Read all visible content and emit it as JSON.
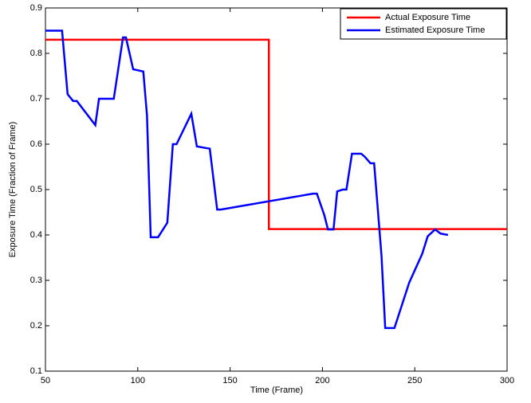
{
  "chart_data": {
    "type": "line",
    "xlabel": "Time (Frame)",
    "ylabel": "Exposure Time (Fraction of Frame)",
    "xlim": [
      50,
      300
    ],
    "xticks": [
      50,
      100,
      150,
      200,
      250,
      300
    ],
    "ylim": [
      0.1,
      0.9
    ],
    "yticks": [
      0.1,
      0.2,
      0.3,
      0.4,
      0.5,
      0.6,
      0.7,
      0.8,
      0.9
    ],
    "legend": "upper right",
    "series": [
      {
        "name": "Actual Exposure Time",
        "color": "#ff0000",
        "x": [
          50,
          171,
          171,
          300
        ],
        "values": [
          0.83,
          0.83,
          0.413,
          0.413
        ]
      },
      {
        "name": "Estimated Exposure Time",
        "color": "#0000ff",
        "x": [
          50,
          59,
          62,
          65,
          67,
          77,
          79,
          87,
          92,
          93.6,
          97.5,
          103,
          105,
          107,
          111,
          116,
          119,
          121,
          129,
          132,
          139,
          143,
          145,
          195,
          197,
          201,
          203,
          206,
          208,
          211,
          213,
          216,
          221,
          223,
          226,
          228,
          232,
          234,
          239,
          247,
          254,
          257,
          261,
          264,
          268
        ],
        "values": [
          0.85,
          0.85,
          0.71,
          0.695,
          0.695,
          0.642,
          0.7,
          0.7,
          0.835,
          0.835,
          0.765,
          0.76,
          0.663,
          0.395,
          0.395,
          0.427,
          0.6,
          0.6,
          0.667,
          0.595,
          0.59,
          0.456,
          0.456,
          0.491,
          0.491,
          0.444,
          0.412,
          0.412,
          0.496,
          0.5,
          0.5,
          0.579,
          0.579,
          0.572,
          0.558,
          0.558,
          0.354,
          0.195,
          0.195,
          0.295,
          0.358,
          0.397,
          0.412,
          0.403,
          0.4
        ]
      }
    ]
  }
}
